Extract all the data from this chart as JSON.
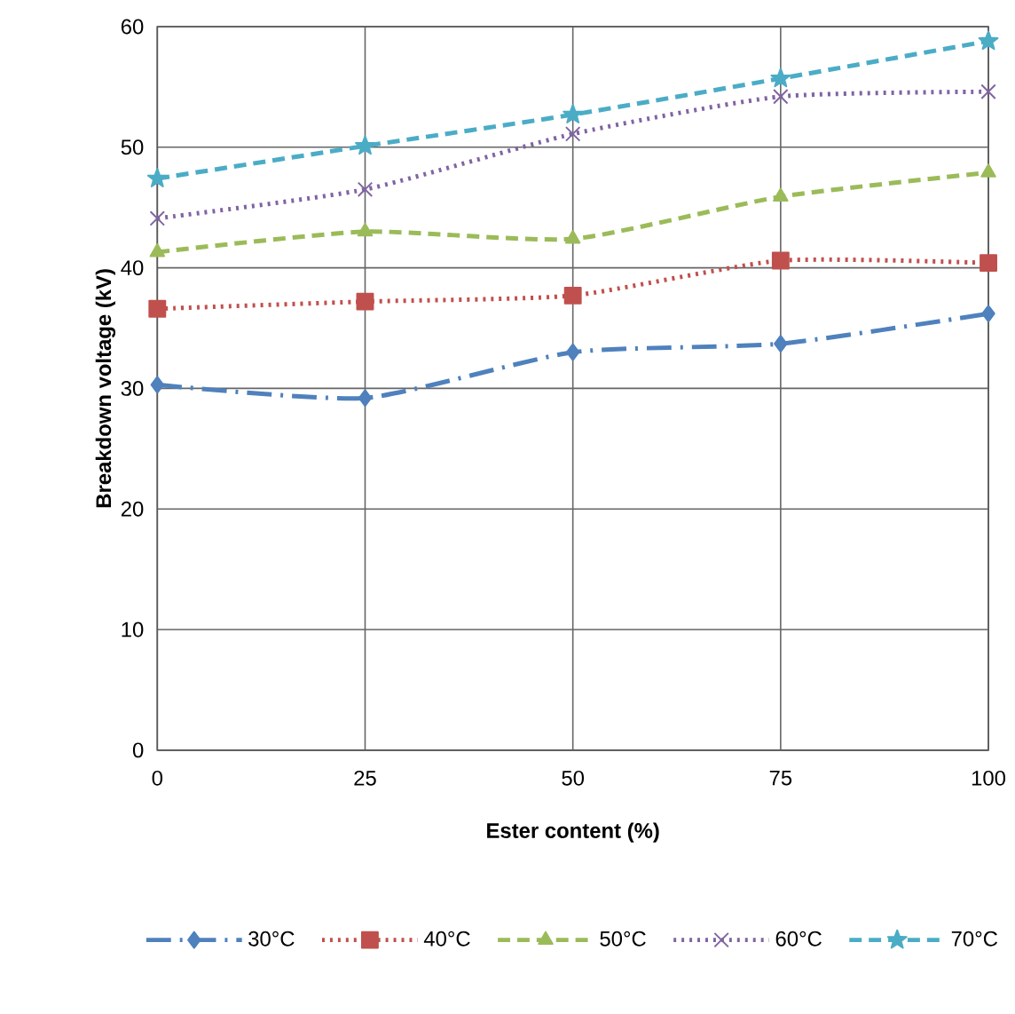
{
  "chart_data": {
    "type": "line",
    "xlabel": "Ester content (%)",
    "ylabel": "Breakdown voltage (kV)",
    "x": [
      0,
      25,
      50,
      75,
      100
    ],
    "xlim": [
      0,
      100
    ],
    "xticks": [
      0,
      25,
      50,
      75,
      100
    ],
    "ylim": [
      0,
      60
    ],
    "yticks": [
      0,
      10,
      20,
      30,
      40,
      50,
      60
    ],
    "grid": true,
    "legend": "bottom",
    "series": [
      {
        "name": "30°C",
        "color": "#4f81bd",
        "marker": "diamond",
        "line_style": "dashdot",
        "values": [
          30.3,
          29.2,
          33.0,
          33.7,
          36.2
        ]
      },
      {
        "name": "40°C",
        "color": "#c0504d",
        "marker": "square",
        "line_style": "dotted",
        "values": [
          36.6,
          37.2,
          37.7,
          40.6,
          40.4
        ]
      },
      {
        "name": "50°C",
        "color": "#9bbb59",
        "marker": "triangle",
        "line_style": "dashed",
        "values": [
          41.3,
          43.0,
          42.4,
          45.9,
          47.9
        ]
      },
      {
        "name": "60°C",
        "color": "#8064a2",
        "marker": "cross",
        "line_style": "dotted",
        "values": [
          44.1,
          46.5,
          51.1,
          54.2,
          54.6
        ]
      },
      {
        "name": "70°C",
        "color": "#4bacc6",
        "marker": "star",
        "line_style": "dashed",
        "values": [
          47.4,
          50.1,
          52.7,
          55.7,
          58.8
        ]
      }
    ]
  }
}
